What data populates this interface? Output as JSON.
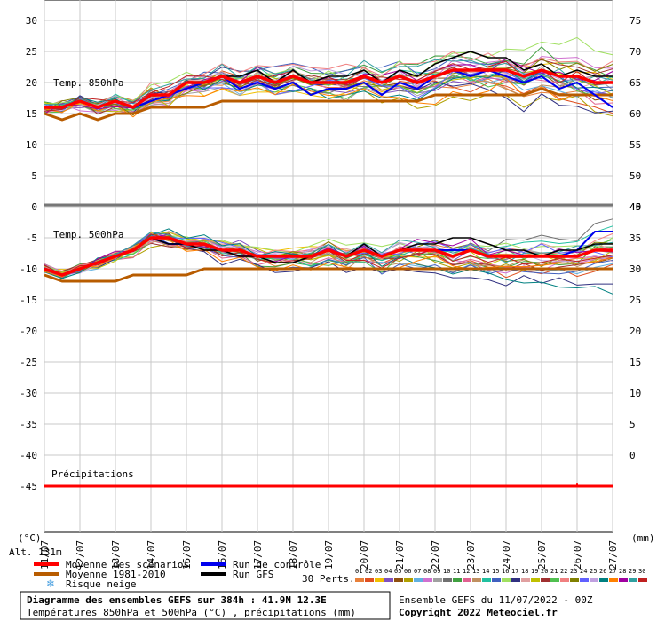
{
  "chart_data": {
    "type": "line",
    "xlabel": "",
    "dates": [
      "11/07",
      "12/07",
      "13/07",
      "14/07",
      "15/07",
      "16/07",
      "17/07",
      "18/07",
      "19/07",
      "20/07",
      "21/07",
      "22/07",
      "23/07",
      "24/07",
      "25/07",
      "26/07",
      "27/07"
    ],
    "left_axis_unit": "(°C)",
    "right_axis_unit": "(mm)",
    "upper_panel": {
      "title": "Temp. 850hPa",
      "ylim": [
        0,
        30
      ],
      "left_ticks": [
        "30",
        "25",
        "20",
        "15",
        "10",
        "5",
        "0"
      ],
      "right_ticks": [
        "75",
        "70",
        "65",
        "60",
        "55",
        "50",
        "45"
      ],
      "series": [
        {
          "name": "Moyenne des scénarios",
          "color": "#ff0000",
          "x": [
            0,
            0.5,
            1,
            1.5,
            2,
            2.5,
            3,
            3.5,
            4,
            4.5,
            5,
            5.5,
            6,
            6.5,
            7,
            7.5,
            8,
            8.5,
            9,
            9.5,
            10,
            10.5,
            11,
            11.5,
            12,
            12.5,
            13,
            13.5,
            14,
            14.5,
            15,
            15.5,
            16
          ],
          "y": [
            16,
            16,
            17,
            16,
            17,
            16,
            18,
            18,
            20,
            20,
            21,
            20,
            21,
            20,
            21,
            20,
            20,
            20,
            21,
            20,
            21,
            20,
            21,
            22,
            22,
            22,
            22,
            21,
            22,
            21,
            21,
            20,
            20
          ]
        },
        {
          "name": "Moyenne 1981-2010",
          "color": "#b85c00",
          "x": [
            0,
            0.5,
            1,
            1.5,
            2,
            2.5,
            3,
            3.5,
            4,
            4.5,
            5,
            5.5,
            6,
            6.5,
            7,
            7.5,
            8,
            8.5,
            9,
            9.5,
            10,
            10.5,
            11,
            11.5,
            12,
            12.5,
            13,
            13.5,
            14,
            14.5,
            15,
            15.5,
            16
          ],
          "y": [
            15,
            14,
            15,
            14,
            15,
            15,
            16,
            16,
            16,
            16,
            17,
            17,
            17,
            17,
            17,
            17,
            17,
            17,
            17,
            17,
            17,
            17,
            18,
            18,
            18,
            18,
            18,
            18,
            19,
            18,
            18,
            18,
            18
          ]
        },
        {
          "name": "Run de contrôle",
          "color": "#0000ee",
          "x": [
            0,
            0.5,
            1,
            1.5,
            2,
            2.5,
            3,
            3.5,
            4,
            4.5,
            5,
            5.5,
            6,
            6.5,
            7,
            7.5,
            8,
            8.5,
            9,
            9.5,
            10,
            10.5,
            11,
            11.5,
            12,
            12.5,
            13,
            13.5,
            14,
            14.5,
            15,
            15.5,
            16
          ],
          "y": [
            16,
            16,
            17,
            16,
            17,
            16,
            17,
            18,
            19,
            20,
            21,
            19,
            20,
            19,
            20,
            18,
            19,
            19,
            20,
            18,
            20,
            19,
            21,
            22,
            21,
            22,
            21,
            20,
            21,
            19,
            20,
            18,
            16
          ]
        },
        {
          "name": "Run GFS",
          "color": "#000000",
          "x": [
            0,
            0.5,
            1,
            1.5,
            2,
            2.5,
            3,
            3.5,
            4,
            4.5,
            5,
            5.5,
            6,
            6.5,
            7,
            7.5,
            8,
            8.5,
            9,
            9.5,
            10,
            10.5,
            11,
            11.5,
            12,
            12.5,
            13,
            13.5,
            14,
            14.5,
            15,
            15.5,
            16
          ],
          "y": [
            16,
            16,
            17,
            16,
            17,
            16,
            18,
            18,
            20,
            20,
            21,
            21,
            22,
            20,
            22,
            20,
            21,
            21,
            22,
            20,
            22,
            21,
            23,
            24,
            25,
            24,
            24,
            22,
            23,
            21,
            22,
            21,
            21
          ]
        }
      ]
    },
    "lower_panel": {
      "title": "Temp. 500hPa",
      "ylim": [
        -45,
        0
      ],
      "left_ticks": [
        "-5",
        "-10",
        "-15",
        "-20",
        "-25",
        "-30",
        "-35",
        "-40",
        "-45"
      ],
      "right_ticks": [
        "40",
        "35",
        "30",
        "25",
        "20",
        "15",
        "10",
        "5",
        "0"
      ],
      "series": [
        {
          "name": "Moyenne des scénarios",
          "color": "#ff0000",
          "x": [
            0,
            0.5,
            1,
            1.5,
            2,
            2.5,
            3,
            3.5,
            4,
            4.5,
            5,
            5.5,
            6,
            6.5,
            7,
            7.5,
            8,
            8.5,
            9,
            9.5,
            10,
            10.5,
            11,
            11.5,
            12,
            12.5,
            13,
            13.5,
            14,
            14.5,
            15,
            15.5,
            16
          ],
          "y": [
            -10,
            -11,
            -10,
            -9,
            -8,
            -7,
            -5,
            -5,
            -6,
            -6,
            -7,
            -7,
            -8,
            -8,
            -8,
            -8,
            -7,
            -8,
            -7,
            -8,
            -7,
            -7,
            -7,
            -8,
            -7,
            -8,
            -8,
            -8,
            -8,
            -8,
            -8,
            -7,
            -7
          ]
        },
        {
          "name": "Moyenne 1981-2010",
          "color": "#b85c00",
          "x": [
            0,
            0.5,
            1,
            1.5,
            2,
            2.5,
            3,
            3.5,
            4,
            4.5,
            5,
            5.5,
            6,
            6.5,
            7,
            7.5,
            8,
            8.5,
            9,
            9.5,
            10,
            10.5,
            11,
            11.5,
            12,
            12.5,
            13,
            13.5,
            14,
            14.5,
            15,
            15.5,
            16
          ],
          "y": [
            -11,
            -12,
            -12,
            -12,
            -12,
            -11,
            -11,
            -11,
            -11,
            -10,
            -10,
            -10,
            -10,
            -10,
            -10,
            -10,
            -10,
            -10,
            -10,
            -10,
            -10,
            -10,
            -10,
            -10,
            -10,
            -10,
            -10,
            -10,
            -10,
            -10,
            -10,
            -10,
            -10
          ]
        },
        {
          "name": "Run de contrôle",
          "color": "#0000ee",
          "x": [
            0,
            0.5,
            1,
            1.5,
            2,
            2.5,
            3,
            3.5,
            4,
            4.5,
            5,
            5.5,
            6,
            6.5,
            7,
            7.5,
            8,
            8.5,
            9,
            9.5,
            10,
            10.5,
            11,
            11.5,
            12,
            12.5,
            13,
            13.5,
            14,
            14.5,
            15,
            15.5,
            16
          ],
          "y": [
            -10,
            -11,
            -10,
            -9,
            -8,
            -7,
            -5,
            -6,
            -6,
            -6,
            -7,
            -7,
            -8,
            -8,
            -8,
            -8,
            -7,
            -8,
            -7,
            -8,
            -7,
            -7,
            -7,
            -7,
            -7,
            -8,
            -8,
            -8,
            -8,
            -8,
            -7,
            -4,
            -4
          ]
        },
        {
          "name": "Run GFS",
          "color": "#000000",
          "x": [
            0,
            0.5,
            1,
            1.5,
            2,
            2.5,
            3,
            3.5,
            4,
            4.5,
            5,
            5.5,
            6,
            6.5,
            7,
            7.5,
            8,
            8.5,
            9,
            9.5,
            10,
            10.5,
            11,
            11.5,
            12,
            12.5,
            13,
            13.5,
            14,
            14.5,
            15,
            15.5,
            16
          ],
          "y": [
            -10,
            -11,
            -10,
            -9,
            -8,
            -7,
            -5,
            -6,
            -6,
            -7,
            -7,
            -8,
            -8,
            -9,
            -9,
            -8,
            -7,
            -8,
            -6,
            -8,
            -7,
            -6,
            -6,
            -5,
            -5,
            -6,
            -7,
            -7,
            -8,
            -7,
            -7,
            -6,
            -6
          ]
        }
      ]
    },
    "precip_panel": {
      "title": "Précipitations",
      "series": [
        {
          "name": "Moyenne des scénarios",
          "color": "#ff0000",
          "x": [
            0,
            2,
            4,
            6,
            8,
            10,
            12,
            14,
            15,
            16
          ],
          "y": [
            0,
            0,
            0,
            0,
            0.1,
            0,
            0.1,
            0.1,
            0.2,
            0.1
          ]
        }
      ]
    },
    "perturbation_colors": [
      "#e8803a",
      "#e05020",
      "#f0c000",
      "#8050c0",
      "#905010",
      "#b0a000",
      "#60b0e0",
      "#d070d0",
      "#a0a0a0",
      "#707070",
      "#40a040",
      "#e06090",
      "#c09060",
      "#20c0a0",
      "#4060c0",
      "#a0e060",
      "#303080",
      "#e0a0a0",
      "#c0c000",
      "#a03030",
      "#50c050",
      "#f08080",
      "#808000",
      "#6060ff",
      "#c0a0e0",
      "#008080",
      "#ff8000",
      "#a000a0",
      "#30a0a0",
      "#c02020"
    ]
  },
  "altitude": "Alt. 131m",
  "legend": {
    "items": [
      {
        "label": "Moyenne des scénarios",
        "color": "#ff0000"
      },
      {
        "label": "Moyenne 1981-2010",
        "color": "#b85c00"
      },
      {
        "label": "Run de contrôle",
        "color": "#0000ee"
      },
      {
        "label": "Run GFS",
        "color": "#000000"
      }
    ],
    "snow_label": "Risque neige",
    "snow_icon": "snowflake-icon",
    "perts_label": "30 Perts.",
    "perts_numbers": [
      "01",
      "02",
      "03",
      "04",
      "05",
      "06",
      "07",
      "08",
      "09",
      "10",
      "11",
      "12",
      "13",
      "14",
      "15",
      "16",
      "17",
      "18",
      "19",
      "20",
      "21",
      "22",
      "23",
      "24",
      "25",
      "26",
      "27",
      "28",
      "29",
      "30"
    ]
  },
  "footer": {
    "title": "Diagramme des ensembles GEFS sur 384h : 41.9N 12.3E",
    "subtitle": "Températures 850hPa et 500hPa (°C) , précipitations (mm)",
    "run_info": "Ensemble GEFS du 11/07/2022 - 00Z",
    "copyright": "Copyright 2022 Meteociel.fr"
  }
}
